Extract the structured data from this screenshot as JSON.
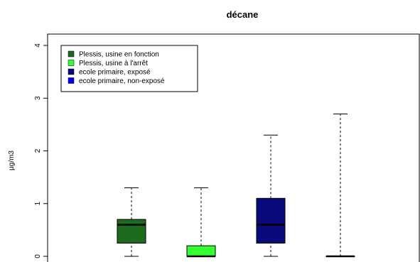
{
  "chart_data": {
    "type": "box",
    "title": "décane",
    "ylabel": "µg/m3",
    "xlabel": "",
    "ylim": [
      0,
      4
    ],
    "yticks": [
      0,
      1,
      2,
      3,
      4
    ],
    "grid": false,
    "legend_position": "top-left",
    "series": [
      {
        "name": "Plessis, usine en fonction",
        "color": "#1e6b1e",
        "min": 0,
        "q1": 0.25,
        "median": 0.6,
        "q3": 0.7,
        "max": 1.3
      },
      {
        "name": "Plessis, usine à l'arrêt",
        "color": "#33ff33",
        "min": 0,
        "q1": 0,
        "median": 0,
        "q3": 0.2,
        "max": 1.3
      },
      {
        "name": "ecole primaire, exposé",
        "color": "#0a0a7a",
        "min": 0,
        "q1": 0.25,
        "median": 0.6,
        "q3": 1.1,
        "max": 2.3
      },
      {
        "name": "ecole primaire, non-exposé",
        "color": "#0000ff",
        "min": 0,
        "q1": 0,
        "median": 0,
        "q3": 0,
        "max": 2.7
      }
    ]
  }
}
